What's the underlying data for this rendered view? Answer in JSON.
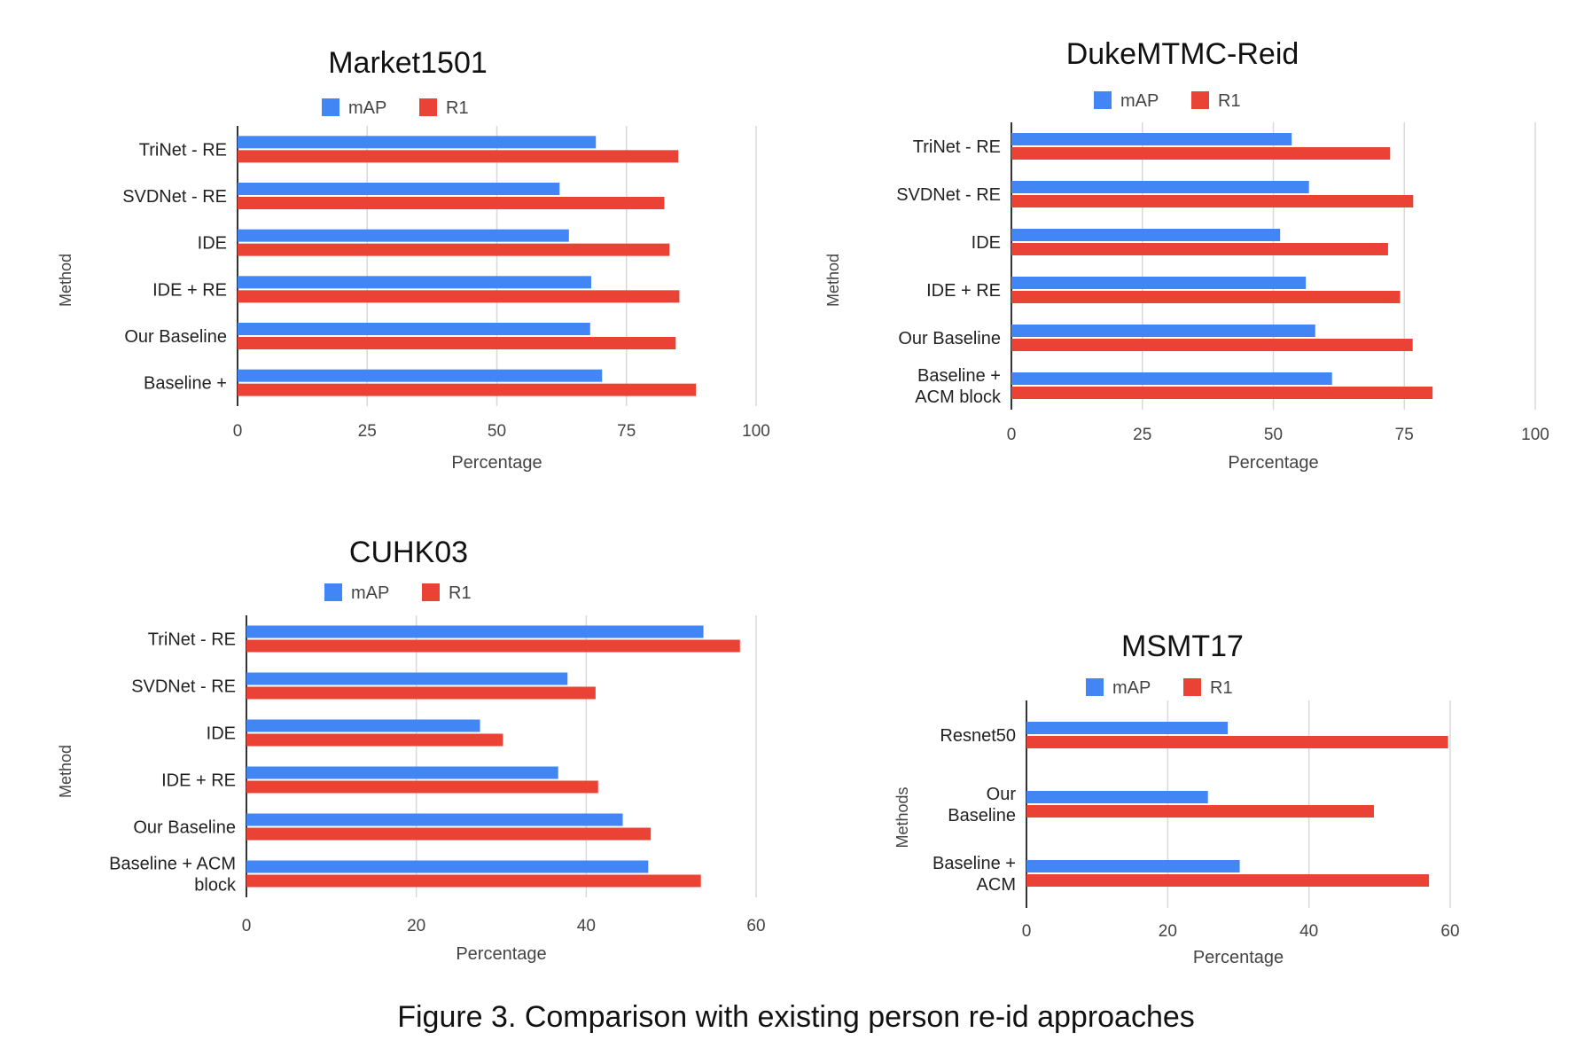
{
  "caption": "Figure 3. Comparison with existing person re-id approaches",
  "colors": {
    "mAP": "#4285f4",
    "R1": "#ea4335",
    "grid": "#d9d9d9",
    "axis": "#333333"
  },
  "chart_data": [
    {
      "type": "bar",
      "orientation": "horizontal",
      "title": "Market1501",
      "xlabel": "Percentage",
      "ylabel": "Method",
      "xlim": [
        0,
        100
      ],
      "xticks": [
        "0",
        "25",
        "50",
        "75",
        "100"
      ],
      "grid": true,
      "legend": "top",
      "categories": [
        [
          "TriNet - RE"
        ],
        [
          "SVDNet - RE"
        ],
        [
          "IDE"
        ],
        [
          "IDE + RE"
        ],
        [
          "Our Baseline"
        ],
        [
          "Baseline +"
        ]
      ],
      "series": [
        {
          "name": "mAP",
          "values": [
            69.1,
            62.1,
            63.9,
            68.2,
            68.0,
            70.3
          ]
        },
        {
          "name": "R1",
          "values": [
            85.0,
            82.3,
            83.3,
            85.2,
            84.5,
            88.4
          ]
        }
      ]
    },
    {
      "type": "bar",
      "orientation": "horizontal",
      "title": "DukeMTMC-Reid",
      "xlabel": "Percentage",
      "ylabel": "Method",
      "xlim": [
        0,
        100
      ],
      "xticks": [
        "0",
        "25",
        "50",
        "75",
        "100"
      ],
      "grid": true,
      "legend": "top",
      "categories": [
        [
          "TriNet - RE"
        ],
        [
          "SVDNet - RE"
        ],
        [
          "IDE"
        ],
        [
          "IDE + RE"
        ],
        [
          "Our Baseline"
        ],
        [
          "Baseline +",
          "ACM block"
        ]
      ],
      "series": [
        {
          "name": "mAP",
          "values": [
            53.5,
            56.8,
            51.3,
            56.2,
            58.0,
            61.2
          ]
        },
        {
          "name": "R1",
          "values": [
            72.3,
            76.7,
            71.9,
            74.2,
            76.6,
            80.4
          ]
        }
      ]
    },
    {
      "type": "bar",
      "orientation": "horizontal",
      "title": "CUHK03",
      "xlabel": "Percentage",
      "ylabel": "Method",
      "xlim": [
        0,
        60
      ],
      "xticks": [
        "0",
        "20",
        "40",
        "60"
      ],
      "grid": true,
      "legend": "top",
      "categories": [
        [
          "TriNet - RE"
        ],
        [
          "SVDNet - RE"
        ],
        [
          "IDE"
        ],
        [
          "IDE + RE"
        ],
        [
          "Our Baseline"
        ],
        [
          "Baseline + ACM",
          "block"
        ]
      ],
      "series": [
        {
          "name": "mAP",
          "values": [
            53.8,
            37.8,
            27.5,
            36.7,
            44.3,
            47.3
          ]
        },
        {
          "name": "R1",
          "values": [
            58.1,
            41.1,
            30.2,
            41.4,
            47.6,
            53.5
          ]
        }
      ]
    },
    {
      "type": "bar",
      "orientation": "horizontal",
      "title": "MSMT17",
      "xlabel": "Percentage",
      "ylabel": "Methods",
      "xlim": [
        0,
        60
      ],
      "xticks": [
        "0",
        "20",
        "40",
        "60"
      ],
      "grid": true,
      "legend": "top",
      "categories": [
        [
          "Resnet50"
        ],
        [
          "Our",
          "Baseline"
        ],
        [
          "Baseline +",
          "ACM"
        ]
      ],
      "series": [
        {
          "name": "mAP",
          "values": [
            28.5,
            25.7,
            30.2
          ]
        },
        {
          "name": "R1",
          "values": [
            59.7,
            49.2,
            57.0
          ]
        }
      ]
    }
  ]
}
